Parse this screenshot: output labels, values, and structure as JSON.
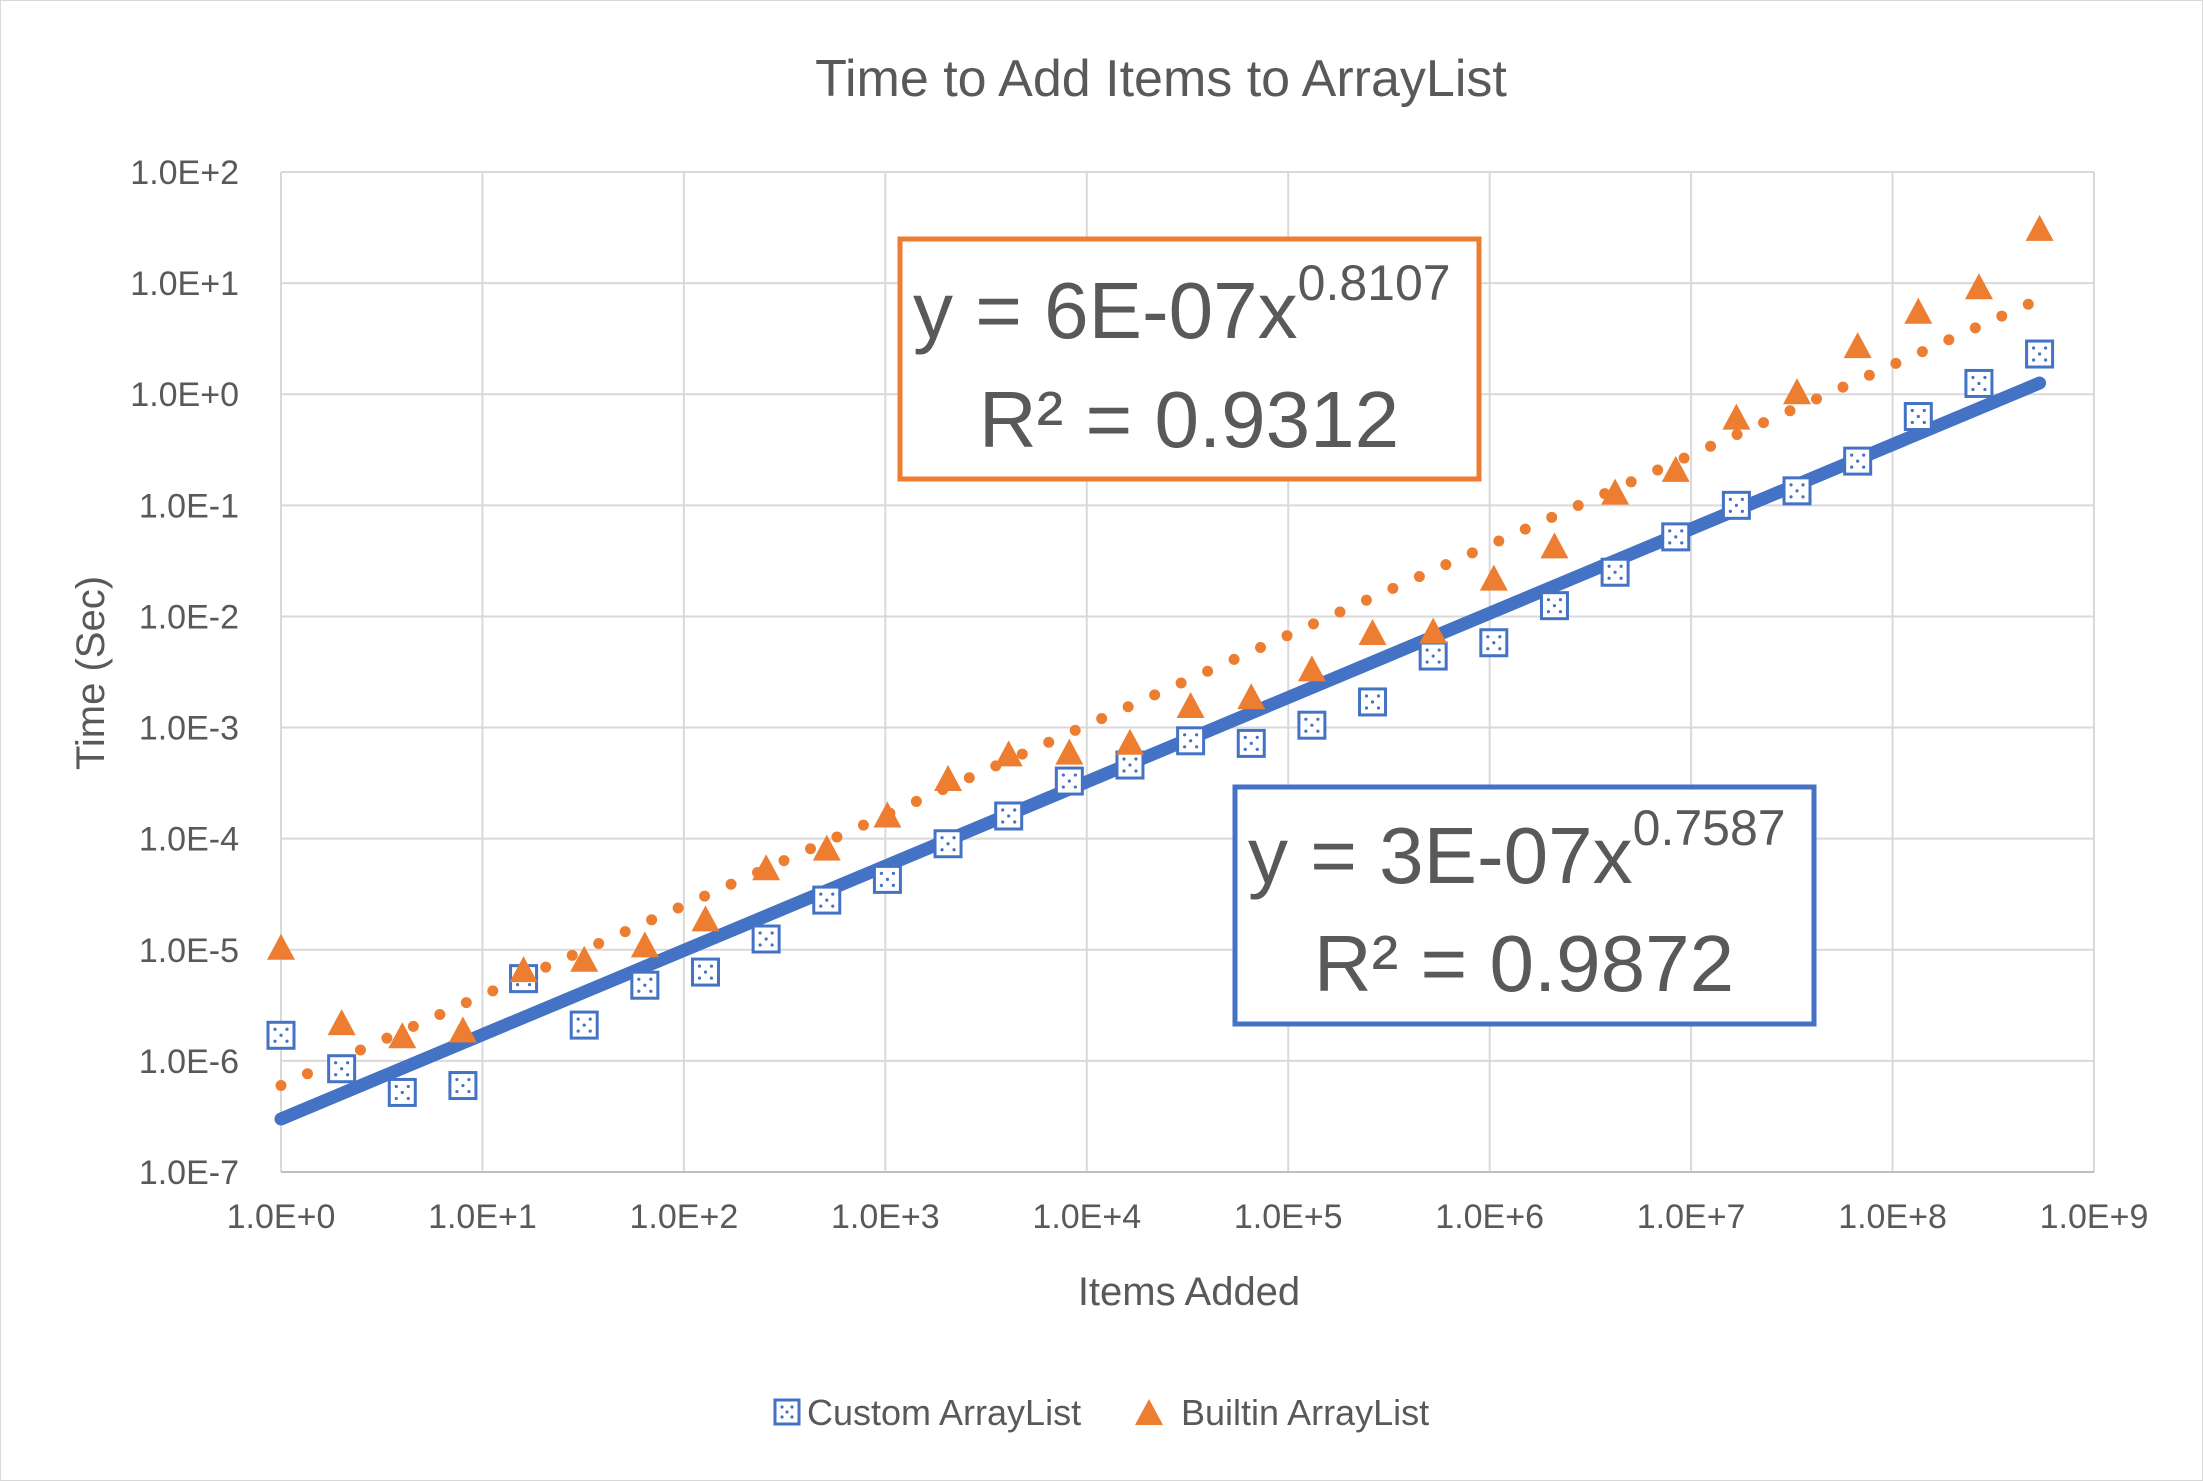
{
  "chart_data": {
    "type": "scatter",
    "title": "Time to Add Items to ArrayList",
    "xlabel": "Items Added",
    "ylabel": "Time (Sec)",
    "x_scale": "log",
    "y_scale": "log",
    "xlim": [
      1,
      1000000000
    ],
    "ylim": [
      1e-07,
      100
    ],
    "grid": true,
    "legend_position": "bottom",
    "x_ticks": [
      "1.0E+0",
      "1.0E+1",
      "1.0E+2",
      "1.0E+3",
      "1.0E+4",
      "1.0E+5",
      "1.0E+6",
      "1.0E+7",
      "1.0E+8",
      "1.0E+9"
    ],
    "y_ticks": [
      "1.0E+2",
      "1.0E+1",
      "1.0E+0",
      "1.0E-1",
      "1.0E-2",
      "1.0E-3",
      "1.0E-4",
      "1.0E-5",
      "1.0E-6",
      "1.0E-7"
    ],
    "x": [
      1,
      2,
      4,
      8,
      16,
      32,
      64,
      128,
      256,
      512,
      1024,
      2048,
      4096,
      8192,
      16384,
      32768,
      65536,
      131072,
      262144,
      524288,
      1048576,
      2097152,
      4194304,
      8388608,
      16777216,
      33554432,
      67108864,
      134217728,
      268435456,
      536870912
    ],
    "series": [
      {
        "name": "Custom ArrayList",
        "color": "#4472c4",
        "marker": "dotted-square",
        "values": [
          1.7e-06,
          8.5e-07,
          5.2e-07,
          6e-07,
          5.5e-06,
          2.1e-06,
          4.8e-06,
          6.3e-06,
          1.25e-05,
          2.8e-05,
          4.3e-05,
          9e-05,
          0.00016,
          0.00033,
          0.00046,
          0.00076,
          0.00072,
          0.00105,
          0.0017,
          0.0044,
          0.0058,
          0.0125,
          0.025,
          0.052,
          0.1,
          0.135,
          0.25,
          0.63,
          1.25,
          2.3
        ],
        "trendline": {
          "type": "power",
          "coefficient": 3e-07,
          "exponent": 0.7587,
          "style": "solid",
          "equation": "y = 3E-07x",
          "equation_exponent": "0.7587",
          "r_squared": "R² = 0.9872"
        }
      },
      {
        "name": "Builtin ArrayList",
        "color": "#ed7d31",
        "marker": "triangle",
        "values": [
          1e-05,
          2.1e-06,
          1.6e-06,
          1.8e-06,
          6.3e-06,
          7.8e-06,
          1.05e-05,
          1.8e-05,
          5.2e-05,
          7.8e-05,
          0.000155,
          0.00033,
          0.00055,
          0.00057,
          0.0007,
          0.0015,
          0.0018,
          0.0032,
          0.0068,
          0.007,
          0.021,
          0.041,
          0.125,
          0.2,
          0.59,
          1.0,
          2.6,
          5.3,
          8.8,
          29.5
        ],
        "trendline": {
          "type": "power",
          "coefficient": 6e-07,
          "exponent": 0.8107,
          "style": "dotted",
          "equation": "y = 6E-07x",
          "equation_exponent": "0.8107",
          "r_squared": "R² = 0.9312"
        }
      }
    ]
  }
}
